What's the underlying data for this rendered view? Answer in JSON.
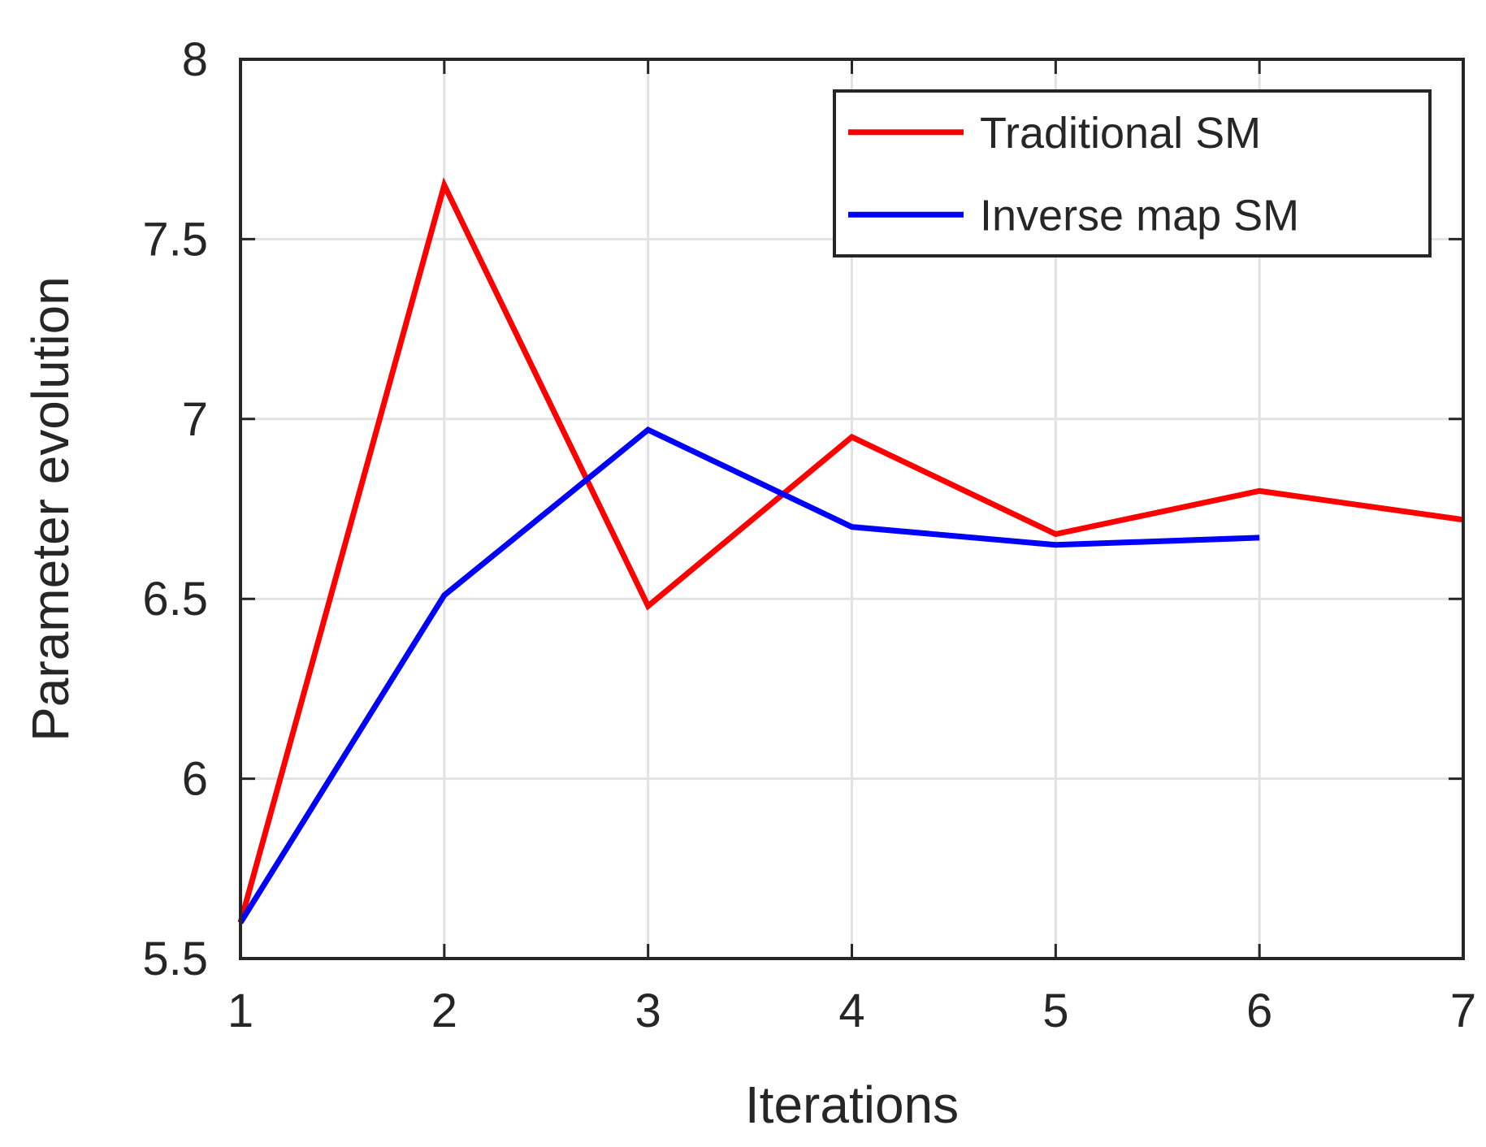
{
  "figure": {
    "background": "#ffffff"
  },
  "chart_data": {
    "type": "line",
    "title": "",
    "xlabel": "Iterations",
    "ylabel": "Parameter evolution",
    "xlim": [
      1,
      7
    ],
    "ylim": [
      5.5,
      8
    ],
    "xticks": [
      1,
      2,
      3,
      4,
      5,
      6,
      7
    ],
    "xtick_labels": [
      "1",
      "2",
      "3",
      "4",
      "5",
      "6",
      "7"
    ],
    "yticks": [
      5.5,
      6,
      6.5,
      7,
      7.5,
      8
    ],
    "ytick_labels": [
      "5.5",
      "6",
      "6.5",
      "7",
      "7.5",
      "8"
    ],
    "grid": true,
    "legend": {
      "position": "top-right-inside",
      "entries": [
        "Traditional SM",
        "Inverse map SM"
      ]
    },
    "series": [
      {
        "name": "Traditional SM",
        "color": "#ff0000",
        "x": [
          1,
          2,
          3,
          4,
          5,
          6,
          7
        ],
        "values": [
          5.6,
          7.65,
          6.48,
          6.95,
          6.68,
          6.8,
          6.72
        ]
      },
      {
        "name": "Inverse map SM",
        "color": "#0000ff",
        "x": [
          1,
          2,
          3,
          4,
          5,
          6
        ],
        "values": [
          5.6,
          6.51,
          6.97,
          6.7,
          6.65,
          6.67
        ]
      }
    ],
    "colors": {
      "axis": "#262626",
      "grid": "#e2e2e2",
      "background": "#ffffff"
    }
  }
}
